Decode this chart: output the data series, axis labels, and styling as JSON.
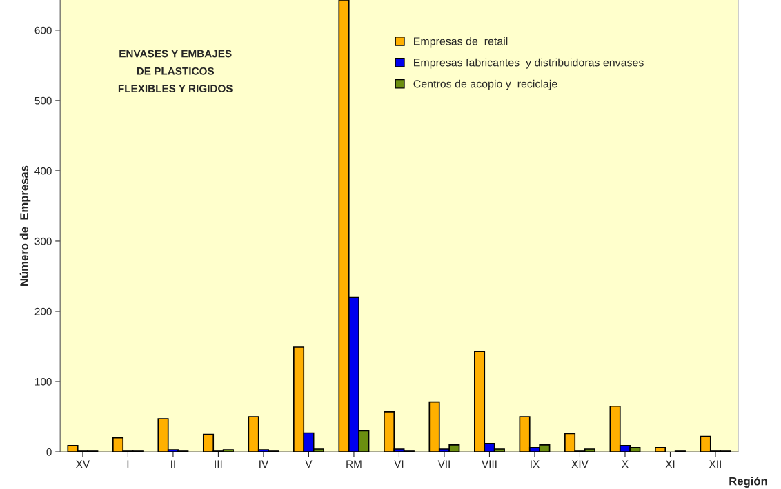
{
  "chart_data": {
    "type": "bar",
    "title": "ENVASES Y EMBAJES\nDE PLASTICOS\nFLEXIBLES Y RIGIDOS",
    "xlabel": "Región",
    "ylabel": "Número de  Empresas",
    "categories": [
      "XV",
      "I",
      "II",
      "III",
      "IV",
      "V",
      "RM",
      "VI",
      "VII",
      "VIII",
      "IX",
      "XIV",
      "X",
      "XI",
      "XII"
    ],
    "series": [
      {
        "name": "Empresas de  retail",
        "color": "#ffb000",
        "values": [
          9,
          20,
          47,
          25,
          50,
          149,
          643,
          57,
          71,
          143,
          50,
          26,
          65,
          6,
          22
        ]
      },
      {
        "name": "Empresas fabricantes  y distribuidoras envases",
        "color": "#0000ee",
        "values": [
          1,
          1,
          3,
          1,
          3,
          27,
          220,
          4,
          4,
          12,
          6,
          1,
          9,
          null,
          1
        ]
      },
      {
        "name": "Centros de acopio y  reciclaje",
        "color": "#6b8e10",
        "values": [
          1,
          1,
          1,
          3,
          1,
          4,
          30,
          1,
          10,
          4,
          10,
          4,
          6,
          1,
          1
        ]
      }
    ],
    "ylim": [
      0,
      643
    ],
    "yticks": [
      0,
      100,
      200,
      300,
      400,
      500,
      600
    ],
    "grid": false,
    "legend": "top right"
  }
}
